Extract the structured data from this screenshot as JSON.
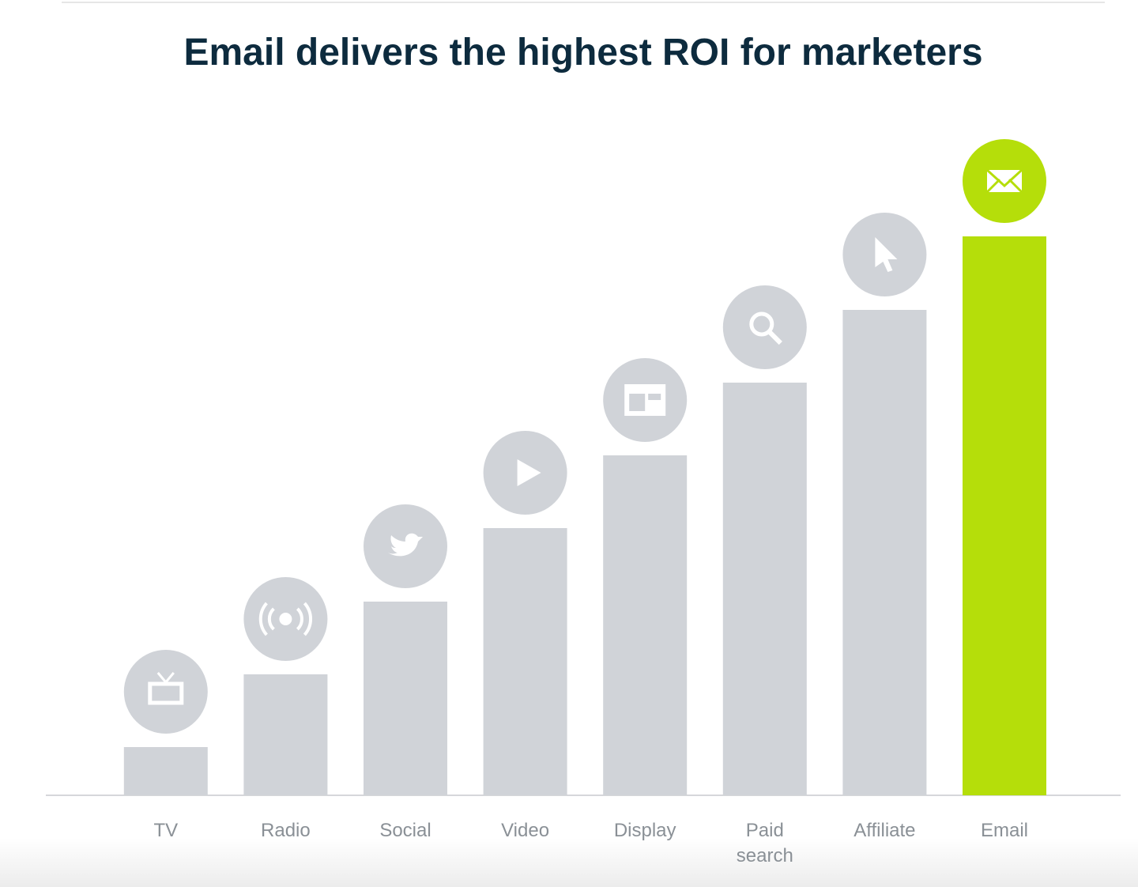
{
  "chart_data": {
    "type": "bar",
    "title": "Email delivers the highest ROI for marketers",
    "categories": [
      "TV",
      "Radio",
      "Social",
      "Video",
      "Display",
      "Paid search",
      "Affiliate",
      "Email"
    ],
    "values": [
      61,
      153,
      245,
      338,
      430,
      522,
      614,
      707
    ],
    "colors": [
      "#d0d3d8",
      "#d0d3d8",
      "#d0d3d8",
      "#d0d3d8",
      "#d0d3d8",
      "#d0d3d8",
      "#d0d3d8",
      "#b5de0a"
    ],
    "ylim": [
      0,
      800
    ]
  }
}
